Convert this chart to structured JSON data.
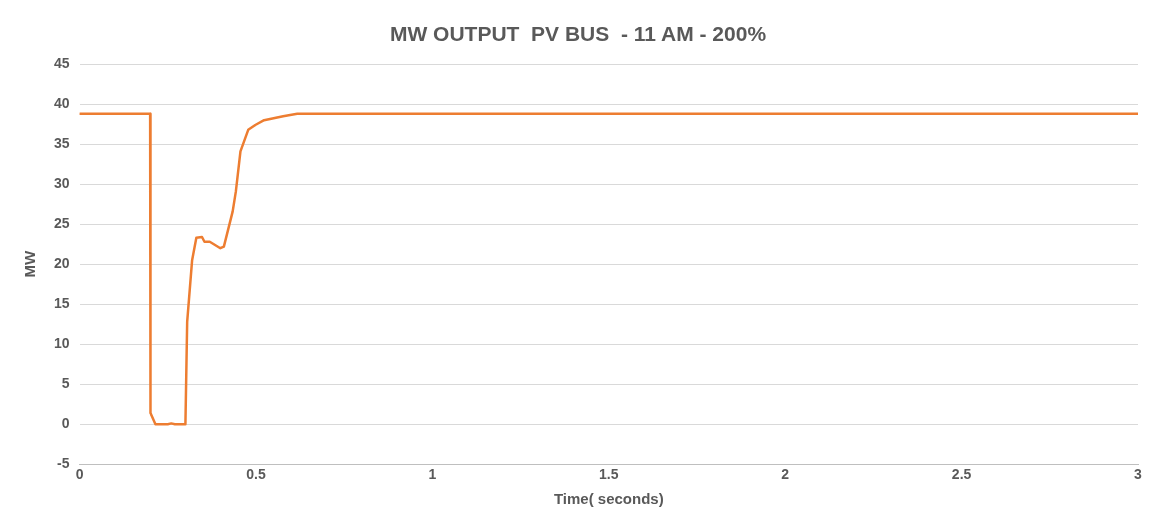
{
  "chart_data": {
    "type": "line",
    "title": "MW OUTPUT  PV BUS  - 11 AM - 200%",
    "xlabel": "Time( seconds)",
    "ylabel": "MW",
    "series": [
      {
        "color": "#ed7d31",
        "x": [
          0,
          0.2,
          0.201,
          0.215,
          0.25,
          0.26,
          0.27,
          0.29,
          0.3,
          0.305,
          0.319,
          0.331,
          0.347,
          0.354,
          0.369,
          0.399,
          0.409,
          0.434,
          0.443,
          0.456,
          0.478,
          0.498,
          0.523,
          0.577,
          0.617,
          3
        ],
        "values": [
          38.8,
          38.8,
          1.4,
          0,
          0,
          0.1,
          0,
          0,
          0,
          12.8,
          20.5,
          23.3,
          23.4,
          22.8,
          22.8,
          22,
          22.2,
          26.6,
          29.1,
          34.1,
          36.8,
          37.4,
          38,
          38.5,
          38.8,
          38.8
        ]
      }
    ],
    "xlim": [
      0,
      3
    ],
    "xticks": [
      0,
      0.5,
      1,
      1.5,
      2,
      2.5,
      3
    ],
    "ylim": [
      -5,
      45
    ],
    "yticks": [
      -5,
      0,
      5,
      10,
      15,
      20,
      25,
      30,
      35,
      40,
      45
    ],
    "grid": "y",
    "legend": false,
    "marker": "none",
    "line_style": "solid"
  }
}
